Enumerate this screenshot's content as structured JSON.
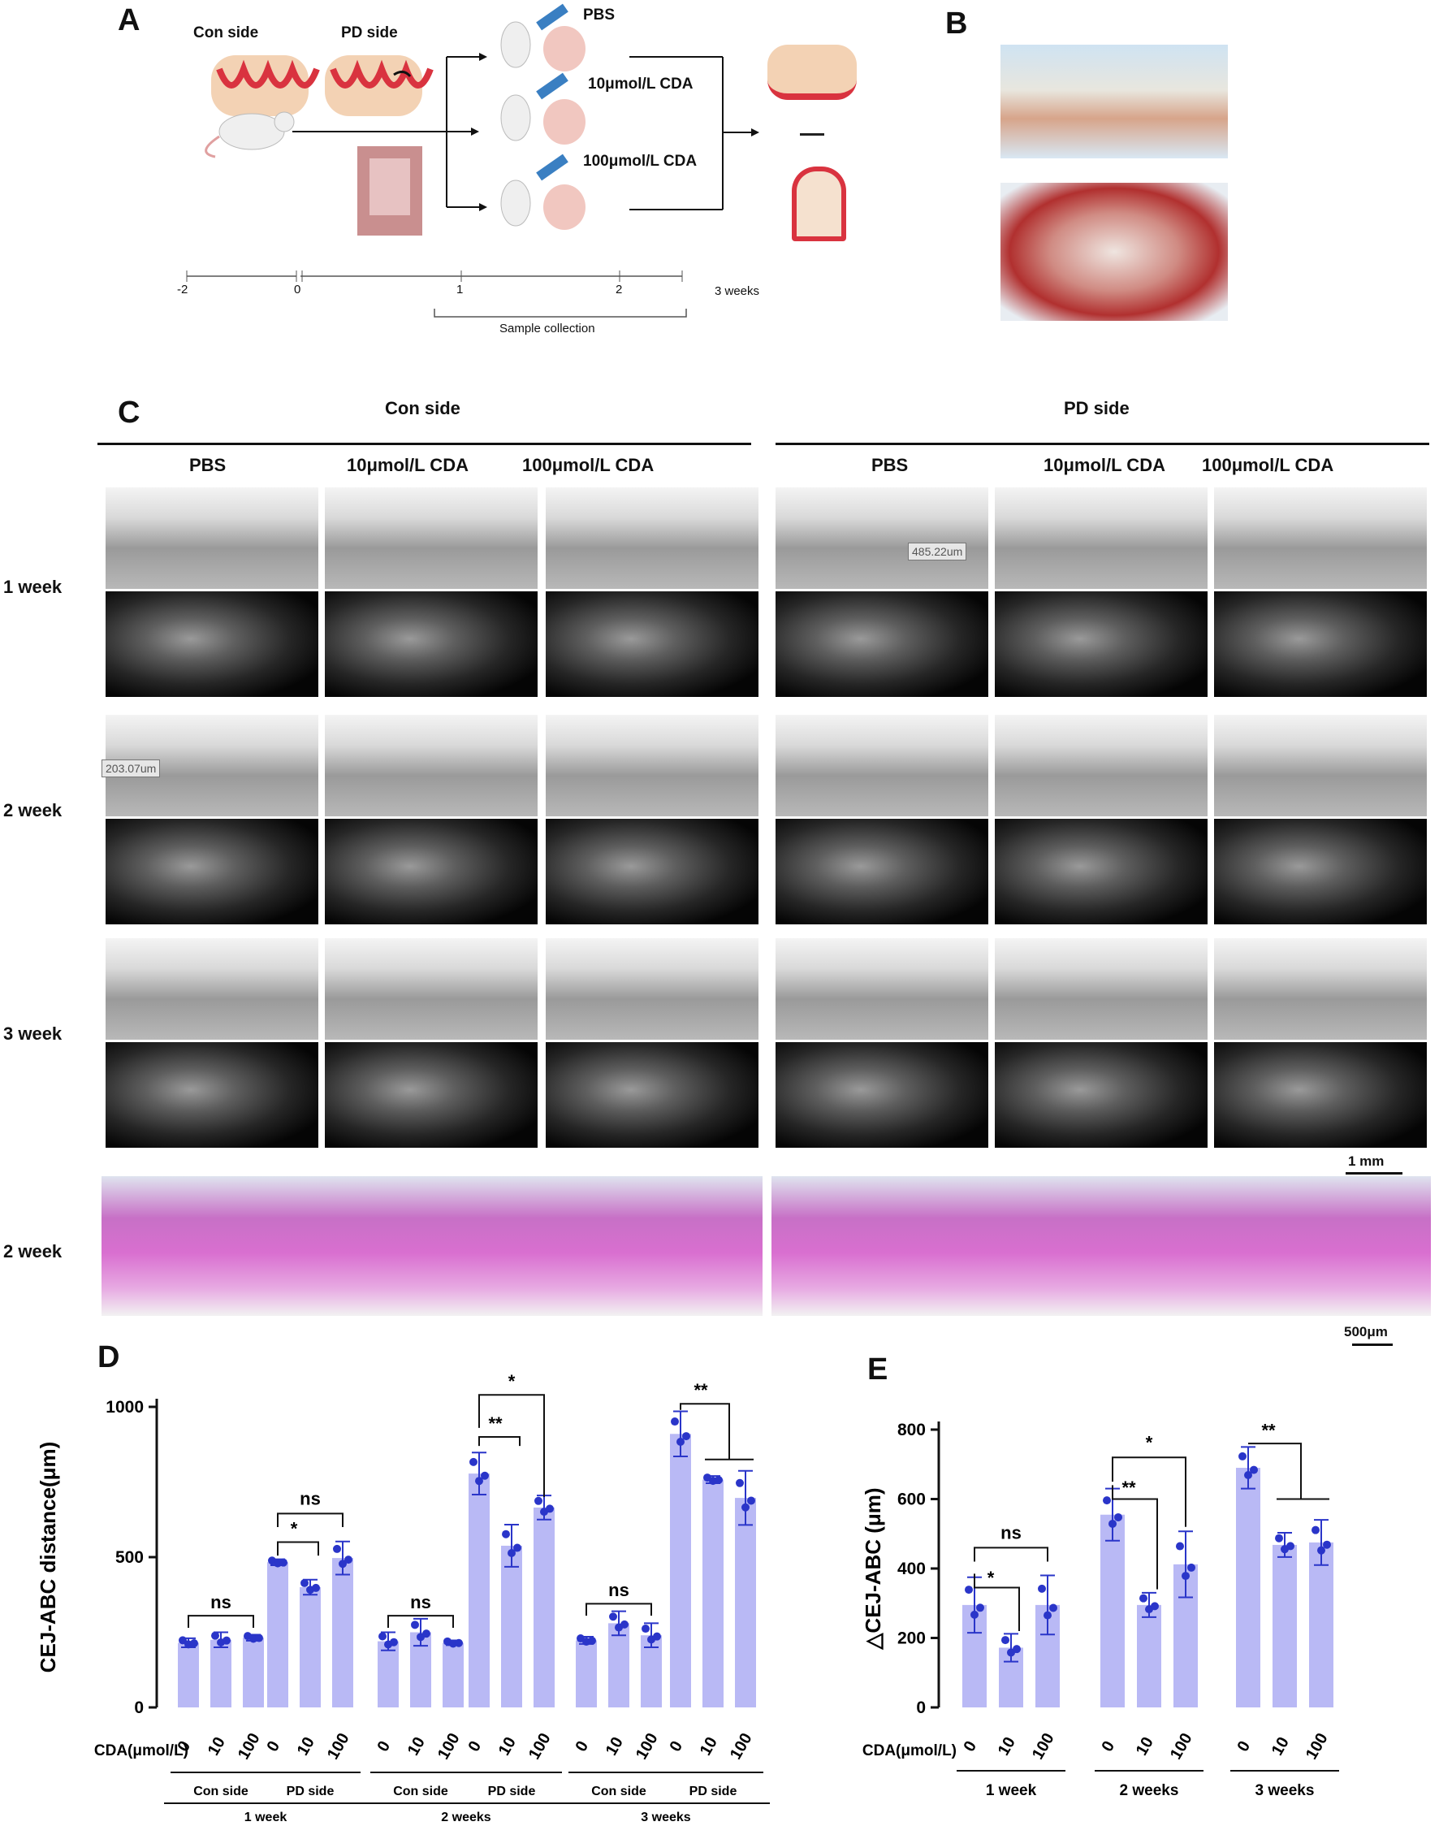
{
  "panels": {
    "a": "A",
    "b": "B",
    "c": "C",
    "d": "D",
    "e": "E"
  },
  "panel_a": {
    "con_side": "Con side",
    "pd_side": "PD side",
    "groups": [
      "PBS",
      "10μmol/L CDA",
      "100μmol/L CDA"
    ],
    "timeline_ticks": [
      "-2",
      "0",
      "1",
      "2",
      "3 weeks"
    ],
    "sample_collection": "Sample collection"
  },
  "panel_c": {
    "con_side": "Con side",
    "pd_side": "PD side",
    "col_labels": [
      "PBS",
      "10μmol/L CDA",
      "100μmol/L CDA",
      "PBS",
      "10μmol/L CDA",
      "100μmol/L CDA"
    ],
    "row_labels": [
      "1 week",
      "2 week",
      "3 week",
      "2 week"
    ],
    "measure_1": "485.22um",
    "measure_2": "203.07um",
    "scale_ct": "1 mm",
    "scale_he": "500μm"
  },
  "chart_data": [
    {
      "type": "bar",
      "panel": "D",
      "ylabel": "CEJ-ABC distance(μm)",
      "ylim": [
        0,
        1000
      ],
      "yticks": [
        0,
        500,
        1000
      ],
      "x_title": "CDA(μmol/L)",
      "bar_color": "#b9b9f5",
      "point_color": "#2a35c9",
      "categories": [
        "0",
        "10",
        "100",
        "0",
        "10",
        "100",
        "0",
        "10",
        "100",
        "0",
        "10",
        "100",
        "0",
        "10",
        "100",
        "0",
        "10",
        "100"
      ],
      "groups": [
        {
          "side": "Con side",
          "week": "1 week",
          "values": [
            215,
            225,
            232
          ]
        },
        {
          "side": "PD  side",
          "week": "1 week",
          "values": [
            483,
            400,
            497
          ]
        },
        {
          "side": "Con side",
          "week": "2 weeks",
          "values": [
            220,
            250,
            215
          ]
        },
        {
          "side": "PD  side",
          "week": "2 weeks",
          "values": [
            778,
            538,
            665
          ]
        },
        {
          "side": "Con side",
          "week": "3 weeks",
          "values": [
            223,
            280,
            240
          ]
        },
        {
          "side": "PD  side",
          "week": "3 weeks",
          "values": [
            910,
            758,
            697
          ]
        }
      ],
      "errors": [
        [
          15,
          25,
          10
        ],
        [
          10,
          25,
          55
        ],
        [
          30,
          45,
          8
        ],
        [
          70,
          70,
          40
        ],
        [
          12,
          40,
          40
        ],
        [
          75,
          12,
          90
        ]
      ],
      "significance": [
        "ns",
        "*",
        "ns",
        "ns",
        "**",
        "*",
        "ns",
        "**"
      ]
    },
    {
      "type": "bar",
      "panel": "E",
      "ylabel": "△CEJ-ABC (μm)",
      "ylim": [
        0,
        800
      ],
      "yticks": [
        0,
        200,
        400,
        600,
        800
      ],
      "x_title": "CDA(μmol/L)",
      "bar_color": "#b9b9f5",
      "point_color": "#2a35c9",
      "categories": [
        "0",
        "10",
        "100",
        "0",
        "10",
        "100",
        "0",
        "10",
        "100"
      ],
      "groups": [
        {
          "week": "1 week",
          "values": [
            295,
            172,
            295
          ]
        },
        {
          "week": "2 weeks",
          "values": [
            555,
            295,
            412
          ]
        },
        {
          "week": "3 weeks",
          "values": [
            690,
            468,
            475
          ]
        }
      ],
      "errors": [
        [
          80,
          40,
          85
        ],
        [
          75,
          35,
          95
        ],
        [
          60,
          35,
          65
        ]
      ],
      "significance": [
        "ns",
        "*",
        "*",
        "**",
        "**"
      ]
    }
  ]
}
